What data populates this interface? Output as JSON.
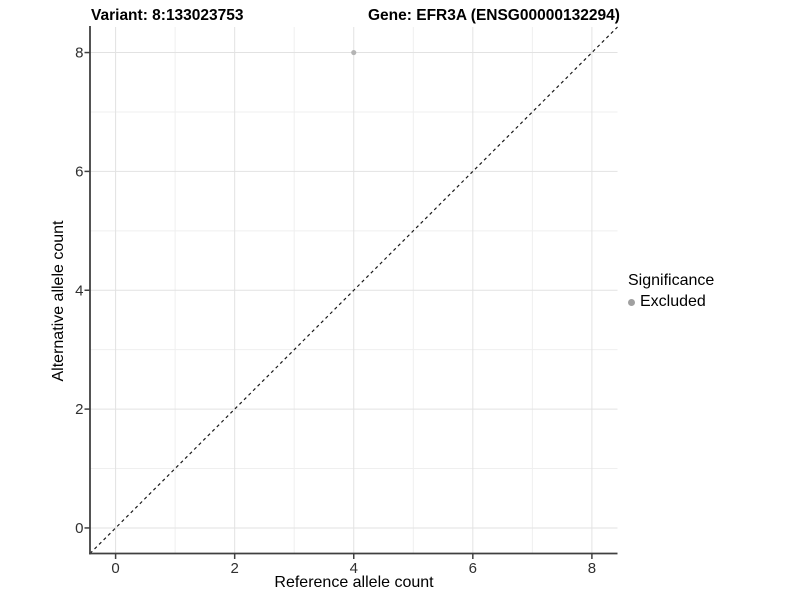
{
  "chart_data": {
    "type": "scatter",
    "titles": {
      "left": "Variant: 8:133023753",
      "right": "Gene: EFR3A (ENSG00000132294)"
    },
    "xlabel": "Reference allele count",
    "ylabel": "Alternative allele count",
    "xlim": [
      -0.43,
      8.43
    ],
    "ylim": [
      -0.43,
      8.43
    ],
    "x_ticks": [
      0,
      2,
      4,
      6,
      8
    ],
    "y_ticks": [
      0,
      2,
      4,
      6,
      8
    ],
    "x_minor_ticks": [
      1,
      3,
      5,
      7
    ],
    "y_minor_ticks": [
      1,
      3,
      5,
      7
    ],
    "grid": true,
    "series": [
      {
        "name": "Excluded",
        "marker": "dot",
        "color": "#b4b4b4",
        "points": [
          {
            "x": 4,
            "y": 8
          }
        ]
      }
    ],
    "reference_line": {
      "kind": "identity",
      "style": "dashed",
      "color": "#1a1a1a",
      "from": [
        -0.43,
        -0.43
      ],
      "to": [
        8.43,
        8.43
      ]
    },
    "legend": {
      "title": "Significance",
      "position": "right",
      "entries": [
        {
          "label": "Excluded",
          "marker": "dot",
          "color": "#a0a0a0"
        }
      ]
    }
  },
  "colors": {
    "background": "#ffffff",
    "axis_line": "#404040",
    "tick_mark": "#404040",
    "tick_label": "#303030",
    "grid_major": "#e2e2e2",
    "grid_minor": "#efefef"
  }
}
